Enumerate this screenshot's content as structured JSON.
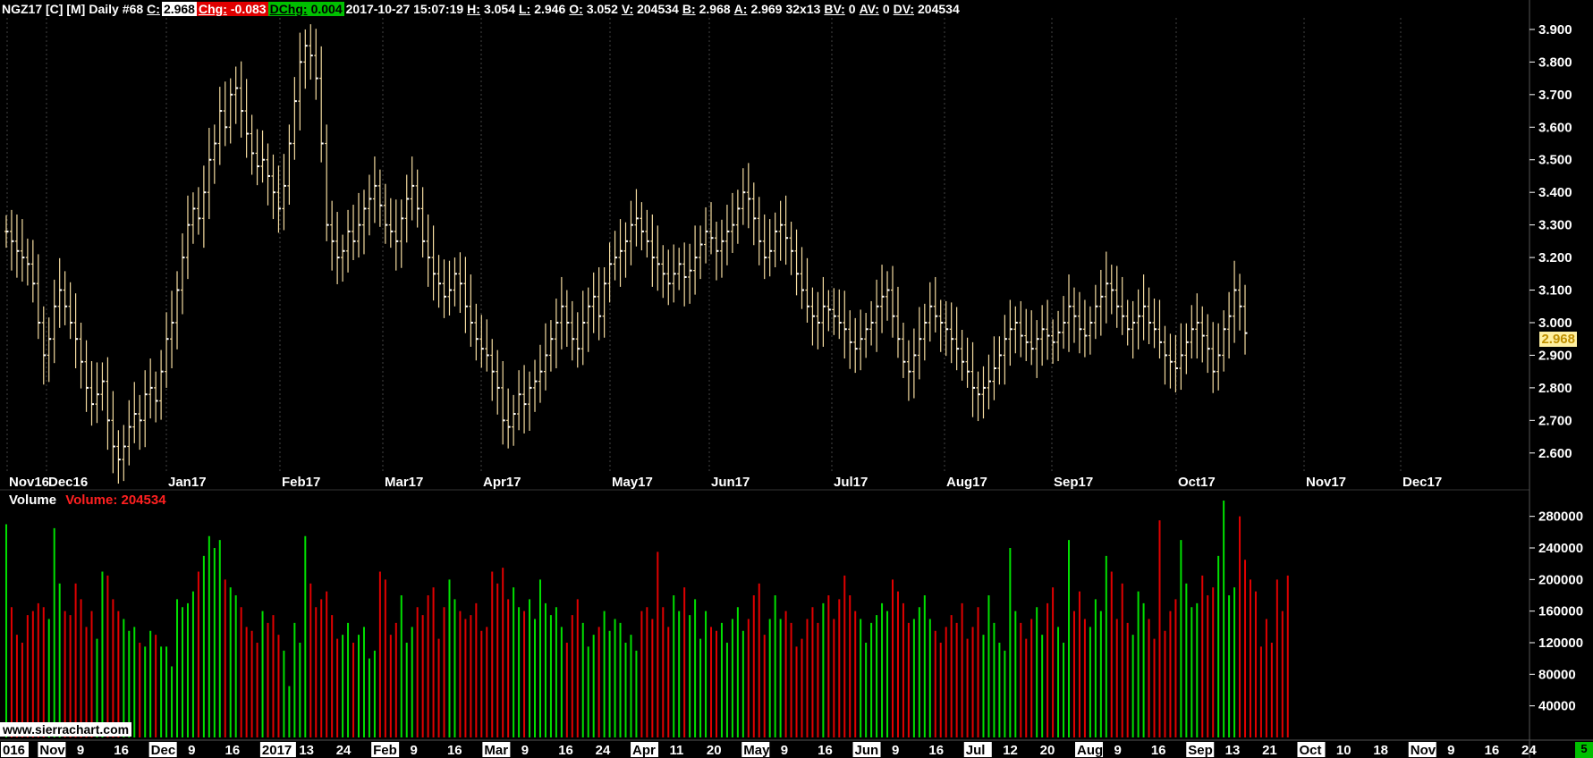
{
  "header": {
    "symbol": "NGZ17 [C] [M]",
    "period": "Daily",
    "bar_index": "#68",
    "close_label": "C:",
    "close_value": "2.968",
    "chg_label": "Chg:",
    "chg_value": "-0.083",
    "dchg_label": "DChg:",
    "dchg_value": "0.004",
    "datetime": "2017-10-27 15:07:19",
    "high_label": "H:",
    "high_value": "3.054",
    "low_label": "L:",
    "low_value": "2.946",
    "open_label": "O:",
    "open_value": "3.052",
    "volume_label": "V:",
    "volume_value": "204534",
    "bid_label": "B:",
    "bid_value": "2.968",
    "ask_label": "A:",
    "ask_value": "2.969",
    "size": "32x13",
    "bv_label": "BV:",
    "bv_value": "0",
    "av_label": "AV:",
    "av_value": "0",
    "dv_label": "DV:",
    "dv_value": "204534"
  },
  "price_panel": {
    "last_price_tag": "2.968",
    "y_ticks": [
      "3.900",
      "3.800",
      "3.700",
      "3.600",
      "3.500",
      "3.400",
      "3.300",
      "3.200",
      "3.100",
      "3.000",
      "2.900",
      "2.800",
      "2.700",
      "2.600"
    ],
    "month_labels": [
      "Nov16",
      "Dec16",
      "Jan17",
      "Feb17",
      "Mar17",
      "Apr17",
      "May17",
      "Jun17",
      "Jul17",
      "Aug17",
      "Sep17",
      "Oct17",
      "Nov17",
      "Dec17"
    ]
  },
  "volume_panel": {
    "title": "Volume",
    "study_label": "Volume: 204534",
    "y_ticks": [
      "280000",
      "240000",
      "200000",
      "160000",
      "120000",
      "80000",
      "40000"
    ]
  },
  "time_axis": {
    "labels": [
      "016",
      "Nov",
      "9",
      "16",
      "Dec",
      "9",
      "16",
      "2017",
      "13",
      "24",
      "Feb",
      "9",
      "16",
      "Mar",
      "9",
      "16",
      "24",
      "Apr",
      "11",
      "20",
      "May",
      "9",
      "16",
      "Jun",
      "9",
      "16",
      "Jul",
      "12",
      "20",
      "Aug",
      "9",
      "16",
      "Sep",
      "13",
      "21",
      "Oct",
      "10",
      "18",
      "Nov",
      "9",
      "16",
      "24"
    ]
  },
  "watermark": "www.sierrachart.com",
  "corner_badge": "5",
  "colors": {
    "background": "#000000",
    "bar": "#f5dca0",
    "volume_up": "#00e000",
    "volume_down": "#e00000",
    "grid": "#444444"
  },
  "chart_data": {
    "type": "ohlc",
    "price_range": [
      2.55,
      3.93
    ],
    "volume_range": [
      0,
      300000
    ],
    "closes": [
      3.28,
      3.25,
      3.22,
      3.2,
      3.18,
      3.12,
      3.0,
      2.9,
      2.95,
      3.05,
      3.1,
      3.05,
      3.0,
      2.95,
      2.88,
      2.8,
      2.75,
      2.78,
      2.82,
      2.7,
      2.62,
      2.58,
      2.62,
      2.68,
      2.72,
      2.7,
      2.78,
      2.8,
      2.76,
      2.85,
      2.95,
      3.0,
      3.1,
      3.2,
      3.3,
      3.35,
      3.32,
      3.4,
      3.5,
      3.55,
      3.65,
      3.6,
      3.7,
      3.72,
      3.65,
      3.58,
      3.52,
      3.48,
      3.5,
      3.45,
      3.4,
      3.35,
      3.42,
      3.55,
      3.68,
      3.8,
      3.85,
      3.82,
      3.75,
      3.55,
      3.3,
      3.25,
      3.2,
      3.22,
      3.28,
      3.25,
      3.3,
      3.35,
      3.38,
      3.42,
      3.36,
      3.3,
      3.28,
      3.25,
      3.32,
      3.38,
      3.42,
      3.35,
      3.25,
      3.2,
      3.15,
      3.12,
      3.08,
      3.1,
      3.15,
      3.12,
      3.05,
      3.0,
      2.95,
      2.92,
      2.9,
      2.85,
      2.8,
      2.7,
      2.68,
      2.72,
      2.78,
      2.75,
      2.8,
      2.82,
      2.85,
      2.9,
      2.95,
      3.0,
      3.05,
      3.0,
      2.95,
      2.92,
      3.0,
      3.05,
      3.08,
      3.02,
      3.12,
      3.18,
      3.2,
      3.22,
      3.25,
      3.3,
      3.32,
      3.28,
      3.25,
      3.2,
      3.18,
      3.15,
      3.12,
      3.15,
      3.18,
      3.14,
      3.16,
      3.2,
      3.24,
      3.28,
      3.26,
      3.22,
      3.25,
      3.28,
      3.3,
      3.35,
      3.4,
      3.38,
      3.32,
      3.25,
      3.2,
      3.22,
      3.28,
      3.3,
      3.26,
      3.22,
      3.15,
      3.1,
      3.05,
      3.02,
      3.0,
      3.05,
      3.04,
      3.02,
      3.0,
      2.98,
      2.94,
      2.92,
      2.95,
      2.98,
      3.0,
      3.05,
      3.08,
      3.1,
      3.02,
      2.95,
      2.88,
      2.85,
      2.9,
      2.95,
      3.0,
      3.05,
      3.02,
      3.0,
      2.98,
      2.95,
      2.92,
      2.88,
      2.85,
      2.8,
      2.78,
      2.8,
      2.82,
      2.86,
      2.9,
      2.95,
      2.98,
      3.0,
      2.96,
      2.94,
      2.92,
      2.95,
      2.98,
      2.96,
      2.94,
      2.97,
      3.0,
      3.05,
      3.02,
      2.98,
      2.96,
      3.0,
      3.05,
      3.08,
      3.12,
      3.1,
      3.05,
      3.02,
      2.98,
      3.0,
      3.02,
      3.05,
      3.0,
      2.98,
      2.94,
      2.9,
      2.88,
      2.86,
      2.9,
      2.94,
      2.98,
      3.0,
      2.96,
      2.92,
      2.85,
      2.9,
      2.98,
      3.02,
      3.1,
      3.05,
      2.968
    ],
    "volumes": [
      270000,
      165000,
      130000,
      120000,
      155000,
      160000,
      170000,
      165000,
      150000,
      265000,
      195000,
      160000,
      155000,
      195000,
      175000,
      140000,
      160000,
      125000,
      210000,
      205000,
      175000,
      160000,
      150000,
      135000,
      140000,
      120000,
      115000,
      135000,
      130000,
      115000,
      115000,
      90000,
      175000,
      165000,
      170000,
      185000,
      210000,
      230000,
      255000,
      240000,
      250000,
      200000,
      190000,
      180000,
      165000,
      140000,
      135000,
      120000,
      160000,
      145000,
      155000,
      130000,
      110000,
      65000,
      145000,
      120000,
      255000,
      195000,
      165000,
      175000,
      185000,
      155000,
      125000,
      130000,
      145000,
      120000,
      130000,
      140000,
      100000,
      110000,
      210000,
      200000,
      130000,
      145000,
      180000,
      120000,
      140000,
      165000,
      155000,
      180000,
      190000,
      125000,
      165000,
      200000,
      175000,
      160000,
      150000,
      155000,
      170000,
      135000,
      140000,
      210000,
      195000,
      215000,
      175000,
      190000,
      165000,
      160000,
      175000,
      150000,
      200000,
      170000,
      155000,
      165000,
      140000,
      120000,
      155000,
      175000,
      145000,
      115000,
      130000,
      140000,
      160000,
      135000,
      150000,
      145000,
      120000,
      130000,
      110000,
      160000,
      165000,
      150000,
      235000,
      165000,
      140000,
      180000,
      160000,
      190000,
      155000,
      175000,
      125000,
      160000,
      140000,
      135000,
      145000,
      120000,
      150000,
      165000,
      135000,
      150000,
      180000,
      195000,
      130000,
      150000,
      180000,
      150000,
      160000,
      145000,
      115000,
      125000,
      150000,
      165000,
      145000,
      170000,
      180000,
      150000,
      175000,
      205000,
      180000,
      160000,
      150000,
      120000,
      145000,
      155000,
      170000,
      160000,
      200000,
      185000,
      170000,
      145000,
      150000,
      165000,
      180000,
      150000,
      135000,
      120000,
      140000,
      155000,
      145000,
      170000,
      125000,
      140000,
      165000,
      130000,
      180000,
      145000,
      120000,
      110000,
      240000,
      160000,
      145000,
      125000,
      150000,
      165000,
      130000,
      170000,
      190000,
      140000,
      120000,
      250000,
      160000,
      185000,
      150000,
      140000,
      175000,
      160000,
      230000,
      210000,
      150000,
      195000,
      145000,
      130000,
      185000,
      170000,
      150000,
      125000,
      275000,
      135000,
      160000,
      175000,
      250000,
      195000,
      165000,
      170000,
      205000,
      180000,
      190000,
      230000,
      300000,
      180000,
      190000,
      280000,
      225000,
      200000,
      185000,
      115000,
      150000,
      120000,
      200000,
      160000,
      205000
    ]
  }
}
